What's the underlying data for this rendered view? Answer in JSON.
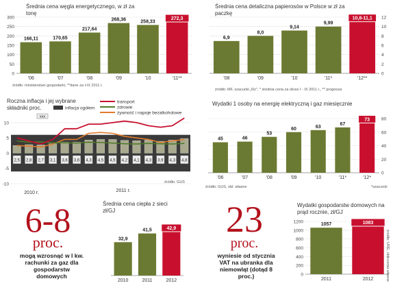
{
  "colors": {
    "olive": "#6b7a32",
    "red": "#c8102e",
    "grid": "#c8c8c8",
    "dark": "#222222",
    "orange": "#e07b2c",
    "green": "#4f7a2a",
    "crimson": "#b3121d"
  },
  "coal": {
    "title": "Średnia cena węgla energetycznego, w zł za tonę",
    "source": "źródło: ministerstwo gospodarki, **dane za I-IX 2011 r.",
    "chart_data": {
      "type": "bar",
      "categories": [
        "'06",
        "'07",
        "'08",
        "'09",
        "'10",
        "'11**"
      ],
      "values": [
        166.11,
        170.65,
        217.64,
        268.36,
        258.33,
        272.3
      ],
      "labels": [
        "166,11",
        "170,65",
        "217,64",
        "268,36",
        "258,33",
        "272,3"
      ],
      "yticks": [
        0,
        50,
        100,
        150,
        200,
        250,
        300
      ],
      "ylim": [
        0,
        300
      ]
    }
  },
  "cigarettes": {
    "title": "Średnia cena detaliczna papierosów w Polsce w zł za paczkę",
    "source": "źródło: MF, szacunki „Rz\", * średnia cena za okres I - IX 2011 r., ** prognoza",
    "chart_data": {
      "type": "bar",
      "categories": [
        "'08",
        "'09",
        "'10",
        "'11*",
        "'12**"
      ],
      "values": [
        6.9,
        8.0,
        9.14,
        9.99,
        10.95
      ],
      "labels": [
        "6,9",
        "8,0",
        "9,14",
        "9,99",
        "10,8-11,1"
      ],
      "yticks": [
        0,
        2,
        4,
        6,
        8,
        10,
        12
      ],
      "ylim": [
        0,
        12
      ]
    }
  },
  "inflation": {
    "title": "Roczna inflacja i jej wybrane składniki proc.",
    "source": "źródło: GUS",
    "legend": {
      "transport": "transport",
      "health": "zdrowie",
      "food": "żywność i napoje bezalkoholowe",
      "overall": "inflacja ogółem",
      "xxx": "xxx"
    },
    "xlabels": {
      "y2010": "2010 r.",
      "y2011": "2011 r."
    },
    "chart_data": {
      "type": "line",
      "bar_labels": [
        "2,5",
        "2,8",
        "2,7",
        "3,1",
        "3,6",
        "3,6",
        "4,3",
        "4,5",
        "4,5",
        "4,2",
        "4,1",
        "4,3",
        "3,9",
        "4,3",
        "4,8"
      ],
      "overall": [
        2.5,
        2.8,
        2.7,
        3.1,
        3.6,
        3.6,
        4.3,
        4.5,
        4.5,
        4.2,
        4.1,
        4.3,
        3.9,
        4.3,
        4.8
      ],
      "transport": [
        5.0,
        4.0,
        3.0,
        4.5,
        8.0,
        8.0,
        9.5,
        9.5,
        10.0,
        10.5,
        10.0,
        9.0,
        8.5,
        9.0,
        11.5
      ],
      "health": [
        4.0,
        3.6,
        3.7,
        3.4,
        3.4,
        3.3,
        3.6,
        3.5,
        3.3,
        3.1,
        3.0,
        3.2,
        3.1,
        3.0,
        3.2
      ],
      "food": [
        2.5,
        2.3,
        2.0,
        3.0,
        4.5,
        4.5,
        6.5,
        6.8,
        6.5,
        5.5,
        5.0,
        4.5,
        3.5,
        4.0,
        4.5
      ],
      "yticks": [
        -10,
        -5,
        0,
        5,
        10
      ],
      "ylim": [
        -10,
        12
      ]
    }
  },
  "energy": {
    "title": "Wydatki 1 osoby na energię elektryczną i gaz miesięcznie",
    "source": "źródło: GUS, obl. własne",
    "note": "*szacunki",
    "chart_data": {
      "type": "bar",
      "categories": [
        "'06",
        "'07",
        "'08",
        "'09",
        "'10",
        "'11*",
        "'12*"
      ],
      "values": [
        45,
        46,
        53,
        60,
        63,
        67,
        73
      ],
      "labels": [
        "45",
        "46",
        "53",
        "60",
        "63",
        "67",
        "73"
      ],
      "yticks": [
        0,
        20,
        40,
        60,
        80
      ],
      "ylim": [
        0,
        80
      ]
    }
  },
  "gas": {
    "big": "6-8",
    "unit": "proc.",
    "caption": "mogą wzrosnąć w I kw. rachunki za gaz dla gospodarstw domowych"
  },
  "heat": {
    "title": "Średnia cena ciepła z sieci zł/GJ",
    "chart_data": {
      "type": "bar",
      "categories": [
        "2010",
        "2011",
        "2012"
      ],
      "values": [
        32.9,
        41.5,
        42.9
      ],
      "labels": [
        "32,9",
        "41,5",
        "42,9"
      ],
      "ylim": [
        0,
        50
      ]
    }
  },
  "vat": {
    "big": "23",
    "unit": "proc.",
    "caption": "wyniesie od stycznia VAT na ubranka dla niemowląt (dotąd 8 proc.)"
  },
  "electricity": {
    "title": "Wydatki gospodarstw domowych na prąd rocznie, zł/GJ",
    "source": "źródło: URE, obliczenia własne",
    "chart_data": {
      "type": "bar",
      "categories": [
        "2011",
        "2012"
      ],
      "values": [
        1057,
        1083
      ],
      "labels": [
        "1057",
        "1083"
      ],
      "yticks": [
        0,
        200,
        400,
        600,
        800,
        1000,
        1200
      ],
      "ylim": [
        0,
        1200
      ]
    }
  }
}
